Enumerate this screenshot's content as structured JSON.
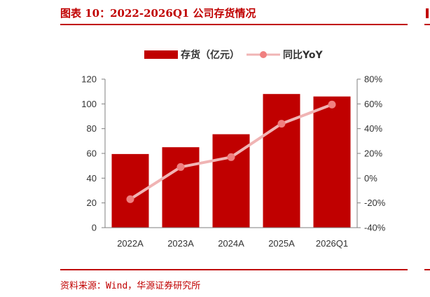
{
  "figure": {
    "title": "图表 10：2022-2026Q1 公司存货情况",
    "source": "资料来源：Wind，华源证券研究所"
  },
  "colors": {
    "accent": "#c00000",
    "bar": "#c00000",
    "line": "#f0b4b4",
    "marker": "#f08080"
  },
  "chart_data": {
    "type": "bar",
    "categories": [
      "2022A",
      "2023A",
      "2024A",
      "2025A",
      "2026Q1"
    ],
    "series": [
      {
        "name": "存货（亿元）",
        "type": "bar",
        "axis": "left",
        "values": [
          59.5,
          65,
          75.5,
          108,
          106
        ]
      },
      {
        "name": "同比YoY",
        "type": "line",
        "axis": "right",
        "values": [
          -17,
          9,
          17,
          44,
          59.5
        ]
      }
    ],
    "y_left": {
      "ylim": [
        0,
        120
      ],
      "ticks": [
        "0",
        "20",
        "40",
        "60",
        "80",
        "100",
        "120"
      ]
    },
    "y_right": {
      "ylim": [
        -40,
        80
      ],
      "ticks": [
        "-40%",
        "-20%",
        "0%",
        "20%",
        "40%",
        "60%",
        "80%"
      ]
    },
    "legend_position": "top",
    "grid": false
  }
}
